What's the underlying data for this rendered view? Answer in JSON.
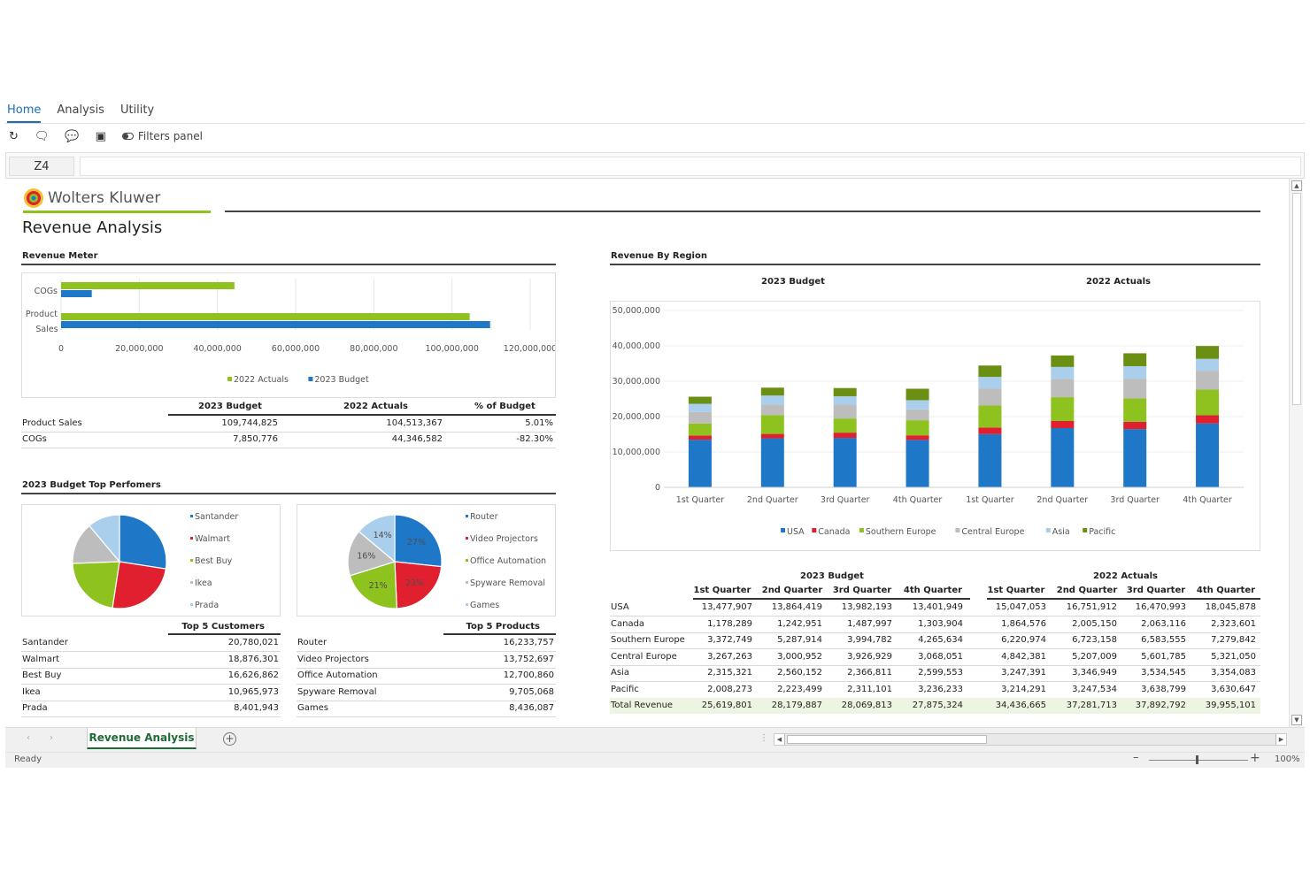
{
  "ribbon": {
    "tabs": [
      "Home",
      "Analysis",
      "Utility"
    ],
    "active_tab": "Home",
    "filters_panel_label": "Filters panel"
  },
  "formula_bar": {
    "cell_ref": "Z4",
    "value": ""
  },
  "report": {
    "brand": "Wolters Kluwer",
    "title": "Revenue Analysis",
    "colors": {
      "green": "#8dc21f",
      "blue": "#1f77c8",
      "red": "#e0202e",
      "gray": "#bdbdbd",
      "lightblue": "#a9cfec",
      "darkgreen": "#6a8f12",
      "total_row_bg": "#eef4e2"
    }
  },
  "revenue_meter": {
    "section_title": "Revenue Meter",
    "chart_data": {
      "type": "bar",
      "orientation": "horizontal",
      "categories": [
        "COGs",
        "Product Sales"
      ],
      "category_labels": [
        "COGs",
        "Product",
        "Sales"
      ],
      "series": [
        {
          "name": "2022 Actuals",
          "values": [
            44346582,
            104513367
          ]
        },
        {
          "name": "2023 Budget",
          "values": [
            7850776,
            109744825
          ]
        }
      ],
      "xlim": [
        0,
        120000000
      ],
      "x_ticks": [
        "0",
        "20,000,000",
        "40,000,000",
        "60,000,000",
        "80,000,000",
        "100,000,000",
        "120,000,000"
      ],
      "legend": "bottom"
    },
    "table": {
      "headers": [
        "2023 Budget",
        "2022 Actuals",
        "% of Budget"
      ],
      "rows": [
        {
          "label": "Product Sales",
          "values": [
            "109,744,825",
            "104,513,367",
            "5.01%"
          ]
        },
        {
          "label": "COGs",
          "values": [
            "7,850,776",
            "44,346,582",
            "-82.30%"
          ]
        }
      ]
    }
  },
  "top_performers": {
    "section_title": "2023 Budget Top Perfomers",
    "customers_pie": {
      "chart_data": {
        "type": "pie",
        "labels": [
          "Santander",
          "Walmart",
          "Best Buy",
          "Ikea",
          "Prada"
        ],
        "values": [
          20780021,
          18876301,
          16626862,
          10965973,
          8401943
        ]
      }
    },
    "products_pie": {
      "chart_data": {
        "type": "pie",
        "labels": [
          "Router",
          "Video Projectors",
          "Office Automation",
          "Spyware Removal",
          "Games"
        ],
        "values": [
          16233757,
          13752697,
          12700860,
          9705068,
          8436087
        ],
        "slice_labels": [
          "27%",
          "23%",
          "21%",
          "16%",
          "14%"
        ]
      }
    },
    "customers_table": {
      "header": "Top 5 Customers",
      "rows": [
        {
          "label": "Santander",
          "value": "20,780,021"
        },
        {
          "label": "Walmart",
          "value": "18,876,301"
        },
        {
          "label": "Best Buy",
          "value": "16,626,862"
        },
        {
          "label": "Ikea",
          "value": "10,965,973"
        },
        {
          "label": "Prada",
          "value": "8,401,943"
        }
      ]
    },
    "products_table": {
      "header": "Top 5 Products",
      "rows": [
        {
          "label": "Router",
          "value": "16,233,757"
        },
        {
          "label": "Video Projectors",
          "value": "13,752,697"
        },
        {
          "label": "Office Automation",
          "value": "12,700,860"
        },
        {
          "label": "Spyware Removal",
          "value": "9,705,068"
        },
        {
          "label": "Games",
          "value": "8,436,087"
        }
      ]
    }
  },
  "revenue_by_region": {
    "section_title": "Revenue By Region",
    "chart_data": {
      "type": "bar",
      "stacked": true,
      "groups": [
        "2023 Budget",
        "2022 Actuals"
      ],
      "categories": [
        "1st Quarter",
        "2nd Quarter",
        "3rd Quarter",
        "4th Quarter",
        "1st Quarter",
        "2nd Quarter",
        "3rd Quarter",
        "4th Quarter"
      ],
      "series": [
        {
          "name": "USA",
          "values": [
            13477907,
            13864419,
            13982193,
            13401949,
            15047053,
            16751912,
            16470993,
            18045878
          ]
        },
        {
          "name": "Canada",
          "values": [
            1178289,
            1242951,
            1487997,
            1303904,
            1864576,
            2005150,
            2063116,
            2323601
          ]
        },
        {
          "name": "Southern Europe",
          "values": [
            3372749,
            5287914,
            3994782,
            4265634,
            6220974,
            6723158,
            6583555,
            7279842
          ]
        },
        {
          "name": "Central Europe",
          "values": [
            3267263,
            3000952,
            3926929,
            3068051,
            4842381,
            5207009,
            5601785,
            5321050
          ]
        },
        {
          "name": "Asia",
          "values": [
            2315321,
            2560152,
            2366811,
            2599553,
            3247391,
            3346949,
            3534545,
            3354083
          ]
        },
        {
          "name": "Pacific",
          "values": [
            2008273,
            2223499,
            2311101,
            3236233,
            3214291,
            3247534,
            3638799,
            3630647
          ]
        }
      ],
      "ylim": [
        0,
        50000000
      ],
      "y_ticks": [
        "0",
        "10,000,000",
        "20,000,000",
        "30,000,000",
        "40,000,000",
        "50,000,000"
      ],
      "legend": "bottom"
    },
    "table": {
      "groups": [
        "2023 Budget",
        "2022 Actuals"
      ],
      "quarters": [
        "1st Quarter",
        "2nd Quarter",
        "3rd Quarter",
        "4th Quarter",
        "1st Quarter",
        "2nd Quarter",
        "3rd Quarter",
        "4th Quarter"
      ],
      "rows": [
        {
          "label": "USA",
          "values": [
            "13,477,907",
            "13,864,419",
            "13,982,193",
            "13,401,949",
            "15,047,053",
            "16,751,912",
            "16,470,993",
            "18,045,878"
          ]
        },
        {
          "label": "Canada",
          "values": [
            "1,178,289",
            "1,242,951",
            "1,487,997",
            "1,303,904",
            "1,864,576",
            "2,005,150",
            "2,063,116",
            "2,323,601"
          ]
        },
        {
          "label": "Southern Europe",
          "values": [
            "3,372,749",
            "5,287,914",
            "3,994,782",
            "4,265,634",
            "6,220,974",
            "6,723,158",
            "6,583,555",
            "7,279,842"
          ]
        },
        {
          "label": "Central Europe",
          "values": [
            "3,267,263",
            "3,000,952",
            "3,926,929",
            "3,068,051",
            "4,842,381",
            "5,207,009",
            "5,601,785",
            "5,321,050"
          ]
        },
        {
          "label": "Asia",
          "values": [
            "2,315,321",
            "2,560,152",
            "2,366,811",
            "2,599,553",
            "3,247,391",
            "3,346,949",
            "3,534,545",
            "3,354,083"
          ]
        },
        {
          "label": "Pacific",
          "values": [
            "2,008,273",
            "2,223,499",
            "2,311,101",
            "3,236,233",
            "3,214,291",
            "3,247,534",
            "3,638,799",
            "3,630,647"
          ]
        }
      ],
      "total": {
        "label": "Total Revenue",
        "values": [
          "25,619,801",
          "28,179,887",
          "28,069,813",
          "27,875,324",
          "34,436,665",
          "37,281,713",
          "37,892,792",
          "39,955,101"
        ]
      }
    }
  },
  "sheet_tabs": {
    "active": "Revenue Analysis"
  },
  "status_bar": {
    "status": "Ready",
    "zoom": "100%"
  }
}
